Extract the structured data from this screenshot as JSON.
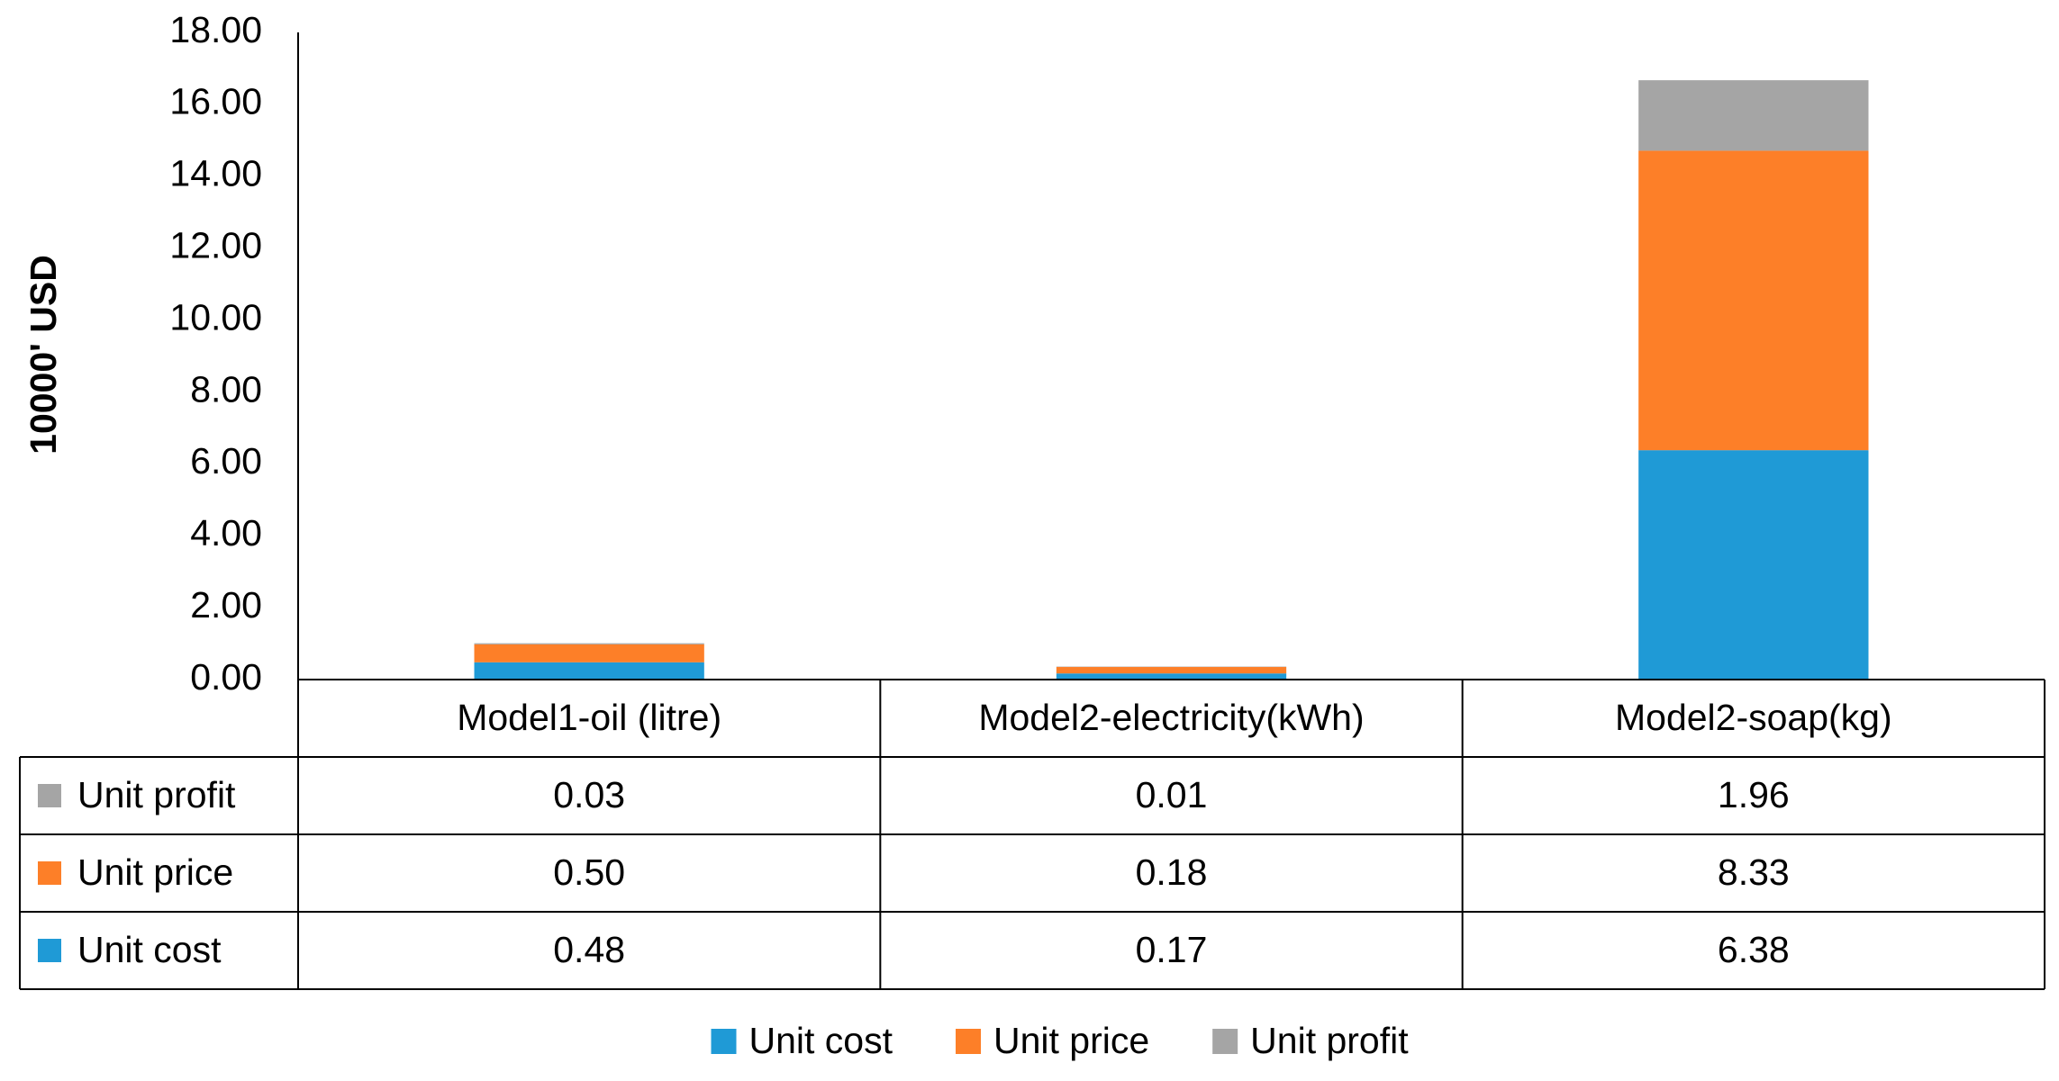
{
  "chart_data": {
    "type": "stacked_bar",
    "y_label": "10000' USD",
    "categories": [
      "Model1-oil (litre)",
      "Model2-electricity(kWh)",
      "Model2-soap(kg)"
    ],
    "series": [
      {
        "name": "Unit cost",
        "color": "#1f9ad6",
        "values": [
          0.48,
          0.17,
          6.38
        ],
        "value_labels": [
          "0.48",
          "0.17",
          "6.38"
        ]
      },
      {
        "name": "Unit price",
        "color": "#fd7f28",
        "values": [
          0.5,
          0.18,
          8.33
        ],
        "value_labels": [
          "0.50",
          "0.18",
          "8.33"
        ]
      },
      {
        "name": "Unit profit",
        "color": "#a5a5a5",
        "values": [
          0.03,
          0.01,
          1.96
        ],
        "value_labels": [
          "0.03",
          "0.01",
          "1.96"
        ]
      }
    ],
    "ylim": [
      0,
      18
    ],
    "yticks": [
      {
        "value": 0,
        "label": "0.00"
      },
      {
        "value": 2,
        "label": "2.00"
      },
      {
        "value": 4,
        "label": "4.00"
      },
      {
        "value": 6,
        "label": "6.00"
      },
      {
        "value": 8,
        "label": "8.00"
      },
      {
        "value": 10,
        "label": "10.00"
      },
      {
        "value": 12,
        "label": "12.00"
      },
      {
        "value": 14,
        "label": "14.00"
      },
      {
        "value": 16,
        "label": "16.00"
      },
      {
        "value": 18,
        "label": "18.00"
      }
    ],
    "data_table": true
  }
}
